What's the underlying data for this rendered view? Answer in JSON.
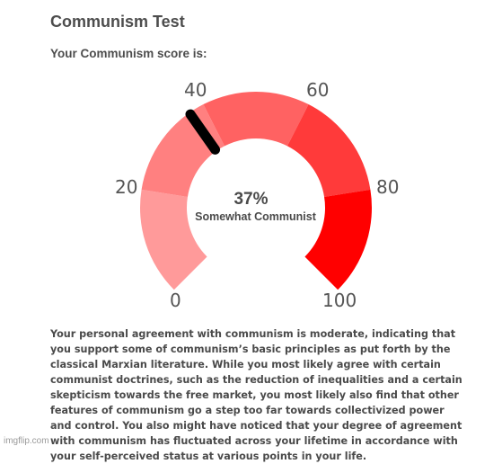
{
  "page": {
    "title": "Communism Test",
    "subtitle": "Your Communism score is:"
  },
  "gauge": {
    "score_fraction": 0.37,
    "score_text": "37%",
    "score_label": "Somewhat Communist",
    "ticks": [
      "0",
      "20",
      "40",
      "60",
      "80",
      "100"
    ],
    "colors": {
      "seg_0_20": "#ff9a9a",
      "seg_20_40": "#ff8080",
      "seg_40_60": "#ff6262",
      "seg_60_80": "#ff3a3a",
      "seg_80_100": "#ff0000",
      "needle": "#000000"
    }
  },
  "description": "Your personal agreement with communism is moderate, indicating that you support some of communism’s basic principles as put forth by the classical Marxian literature. While you most likely agree with certain communist doctrines, such as the reduction of inequalities and a certain skepticism towards the free market, you most likely also find that other features of communism go a step too far towards collectivized power and control. You also might have noticed that your degree of agreement with communism has fluctuated across your lifetime in accordance with your self-perceived status at various points in your life.",
  "watermark": "imgflip.com"
}
